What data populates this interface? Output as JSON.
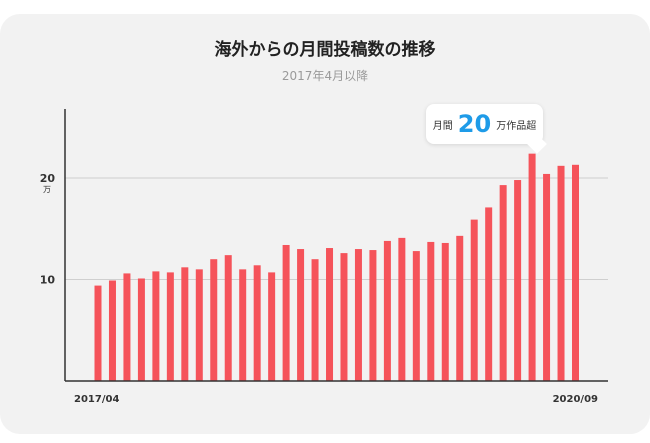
{
  "chart_data": {
    "type": "bar",
    "title": "海外からの月間投稿数の推移",
    "subtitle": "2017年4月以降",
    "x_start_label": "2017/04",
    "x_end_label": "2020/09",
    "y_ticks": [
      {
        "value": 10,
        "label": "10"
      },
      {
        "value": 20,
        "label": "20"
      }
    ],
    "y_unit": "万",
    "ylim": [
      0,
      24
    ],
    "grid": true,
    "values": [
      9.4,
      9.9,
      10.6,
      10.1,
      10.8,
      10.7,
      11.2,
      11.0,
      12.0,
      12.4,
      11.0,
      11.4,
      10.7,
      13.4,
      13.0,
      12.0,
      13.1,
      12.6,
      13.0,
      12.9,
      13.8,
      14.1,
      12.8,
      13.7,
      13.6,
      14.3,
      15.9,
      17.1,
      19.3,
      19.8,
      22.4,
      20.4,
      21.2,
      21.3
    ],
    "bar_color": "#f5535a",
    "callout": {
      "prefix": "月間",
      "number": "20",
      "suffix": "万作品超"
    }
  }
}
